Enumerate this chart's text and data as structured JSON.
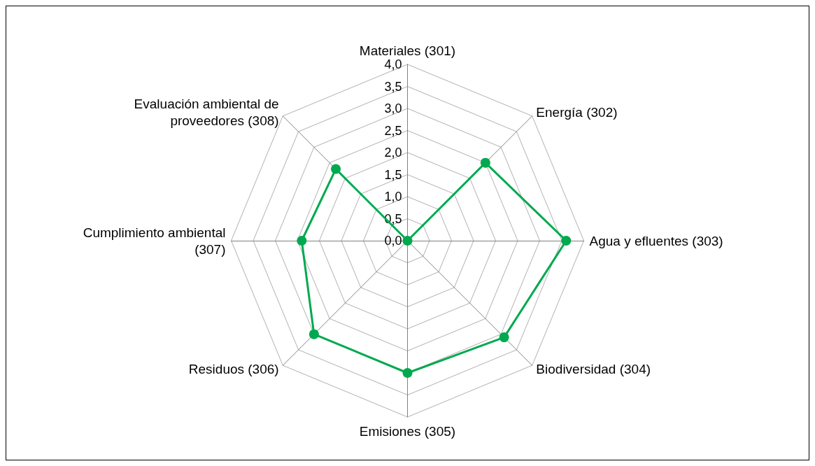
{
  "chart_data": {
    "type": "radar",
    "categories": [
      "Materiales (301)",
      "Energía (302)",
      "Agua y efluentes (303)",
      "Biodiversidad (304)",
      "Emisiones (305)",
      "Residuos (306)",
      "Cumplimiento ambiental (307)",
      "Evaluación ambiental de proveedores (308)"
    ],
    "series": [
      {
        "color": "#00a94f",
        "values": [
          0,
          2.5,
          3.6,
          3.1,
          3.0,
          3.0,
          2.4,
          2.3
        ]
      }
    ],
    "ylim": [
      0,
      4
    ],
    "yticks": [
      {
        "value": 0,
        "label": "0,0"
      },
      {
        "value": 0.5,
        "label": "0,5"
      },
      {
        "value": 1,
        "label": "1,0"
      },
      {
        "value": 1.5,
        "label": "1,5"
      },
      {
        "value": 2,
        "label": "2,0"
      },
      {
        "value": 2.5,
        "label": "2,5"
      },
      {
        "value": 3,
        "label": "3,0"
      },
      {
        "value": 3.5,
        "label": "3,5"
      },
      {
        "value": 4,
        "label": "4,0"
      }
    ],
    "grid": true,
    "marker": "circle",
    "line_style": "solid"
  }
}
